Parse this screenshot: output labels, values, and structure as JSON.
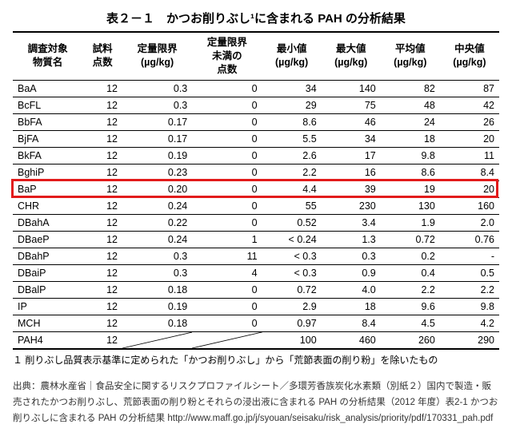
{
  "title": "表２－１　かつお削りぶし¹に含まれる PAH の分析結果",
  "columns": [
    "調査対象\n物質名",
    "試料\n点数",
    "定量限界\n(µg/kg)",
    "定量限界\n未満の\n点数",
    "最小値\n(µg/kg)",
    "最大値\n(µg/kg)",
    "平均値\n(µg/kg)",
    "中央値\n(µg/kg)"
  ],
  "rows": [
    {
      "c": [
        "BaA",
        "12",
        "0.3",
        "0",
        "34",
        "140",
        "82",
        "87"
      ]
    },
    {
      "c": [
        "BcFL",
        "12",
        "0.3",
        "0",
        "29",
        "75",
        "48",
        "42"
      ]
    },
    {
      "c": [
        "BbFA",
        "12",
        "0.17",
        "0",
        "8.6",
        "46",
        "24",
        "26"
      ]
    },
    {
      "c": [
        "BjFA",
        "12",
        "0.17",
        "0",
        "5.5",
        "34",
        "18",
        "20"
      ]
    },
    {
      "c": [
        "BkFA",
        "12",
        "0.19",
        "0",
        "2.6",
        "17",
        "9.8",
        "11"
      ]
    },
    {
      "c": [
        "BghiP",
        "12",
        "0.23",
        "0",
        "2.2",
        "16",
        "8.6",
        "8.4"
      ]
    },
    {
      "c": [
        "BaP",
        "12",
        "0.20",
        "0",
        "4.4",
        "39",
        "19",
        "20"
      ],
      "highlight": true
    },
    {
      "c": [
        "CHR",
        "12",
        "0.24",
        "0",
        "55",
        "230",
        "130",
        "160"
      ]
    },
    {
      "c": [
        "DBahA",
        "12",
        "0.22",
        "0",
        "0.52",
        "3.4",
        "1.9",
        "2.0"
      ]
    },
    {
      "c": [
        "DBaeP",
        "12",
        "0.24",
        "1",
        "< 0.24",
        "1.3",
        "0.72",
        "0.76"
      ]
    },
    {
      "c": [
        "DBahP",
        "12",
        "0.3",
        "11",
        "< 0.3",
        "0.3",
        "0.2",
        "-"
      ]
    },
    {
      "c": [
        "DBaiP",
        "12",
        "0.3",
        "4",
        "< 0.3",
        "0.9",
        "0.4",
        "0.5"
      ]
    },
    {
      "c": [
        "DBalP",
        "12",
        "0.18",
        "0",
        "0.72",
        "4.0",
        "2.2",
        "2.2"
      ]
    },
    {
      "c": [
        "IP",
        "12",
        "0.19",
        "0",
        "2.9",
        "18",
        "9.6",
        "9.8"
      ]
    },
    {
      "c": [
        "MCH",
        "12",
        "0.18",
        "0",
        "0.97",
        "8.4",
        "4.5",
        "4.2"
      ]
    },
    {
      "c": [
        "PAH4",
        "12",
        "/",
        "/",
        "100",
        "460",
        "260",
        "290"
      ]
    }
  ],
  "footnote": "１ 削りぶし品質表示基準に定められた「かつお削りぶし」から「荒節表面の削り粉」を除いたもの",
  "source": "出典：農林水産省｜食品安全に関するリスクプロファイルシート／多環芳香族炭化水素類（別紙２）国内で製造・販売されたかつお削りぶし、荒節表面の削り粉とそれらの浸出液に含まれる PAH の分析結果（2012 年度）表2-1 かつお削りぶしに含まれる PAH の分析結果 http://www.maff.go.jp/j/syouan/seisaku/risk_analysis/priority/pdf/170331_pah.pdf",
  "highlight_color": "#e21b1b"
}
